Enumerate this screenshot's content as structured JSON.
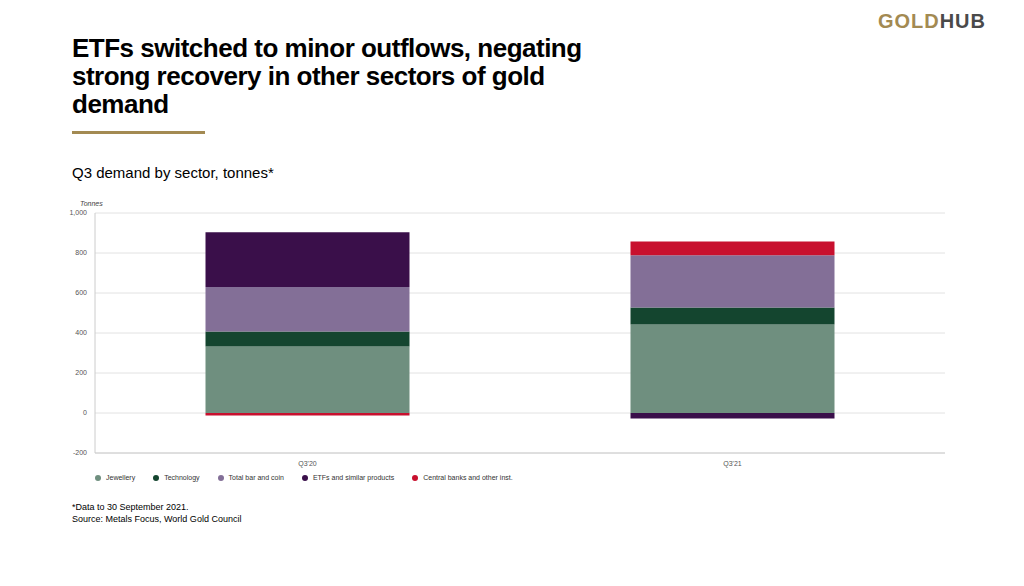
{
  "brand": [
    "GOLD",
    "HUB"
  ],
  "chart_data": {
    "type": "bar",
    "title": "ETFs switched to minor outflows, negating strong recovery in other sectors of gold demand",
    "subtitle": "Q3 demand by sector, tonnes*",
    "y_label": "Tonnes",
    "notes": [
      "*Data to 30 September 2021.",
      "Source: Metals Focus, World Gold Council"
    ],
    "categories": [
      "Q3'20",
      "Q3'21"
    ],
    "series": [
      {
        "name": "Jewellery",
        "color": "#6f8f7f",
        "values": [
          333,
          443
        ]
      },
      {
        "name": "Technology",
        "color": "#14452f",
        "values": [
          75,
          84
        ]
      },
      {
        "name": "Total bar and coin",
        "color": "#836f97",
        "values": [
          222,
          262
        ]
      },
      {
        "name": "ETFs and similar products",
        "color": "#3a0f4a",
        "values": [
          274,
          -27
        ]
      },
      {
        "name": "Central banks and other inst.",
        "color": "#c8102e",
        "values": [
          -12,
          69
        ]
      }
    ],
    "stacked": true,
    "ylim": [
      -200,
      1000
    ],
    "yticks": [
      -200,
      0,
      200,
      400,
      600,
      800,
      {
        "value": 1000,
        "label": "1,000"
      }
    ],
    "grid": true,
    "legend": "bottom"
  }
}
